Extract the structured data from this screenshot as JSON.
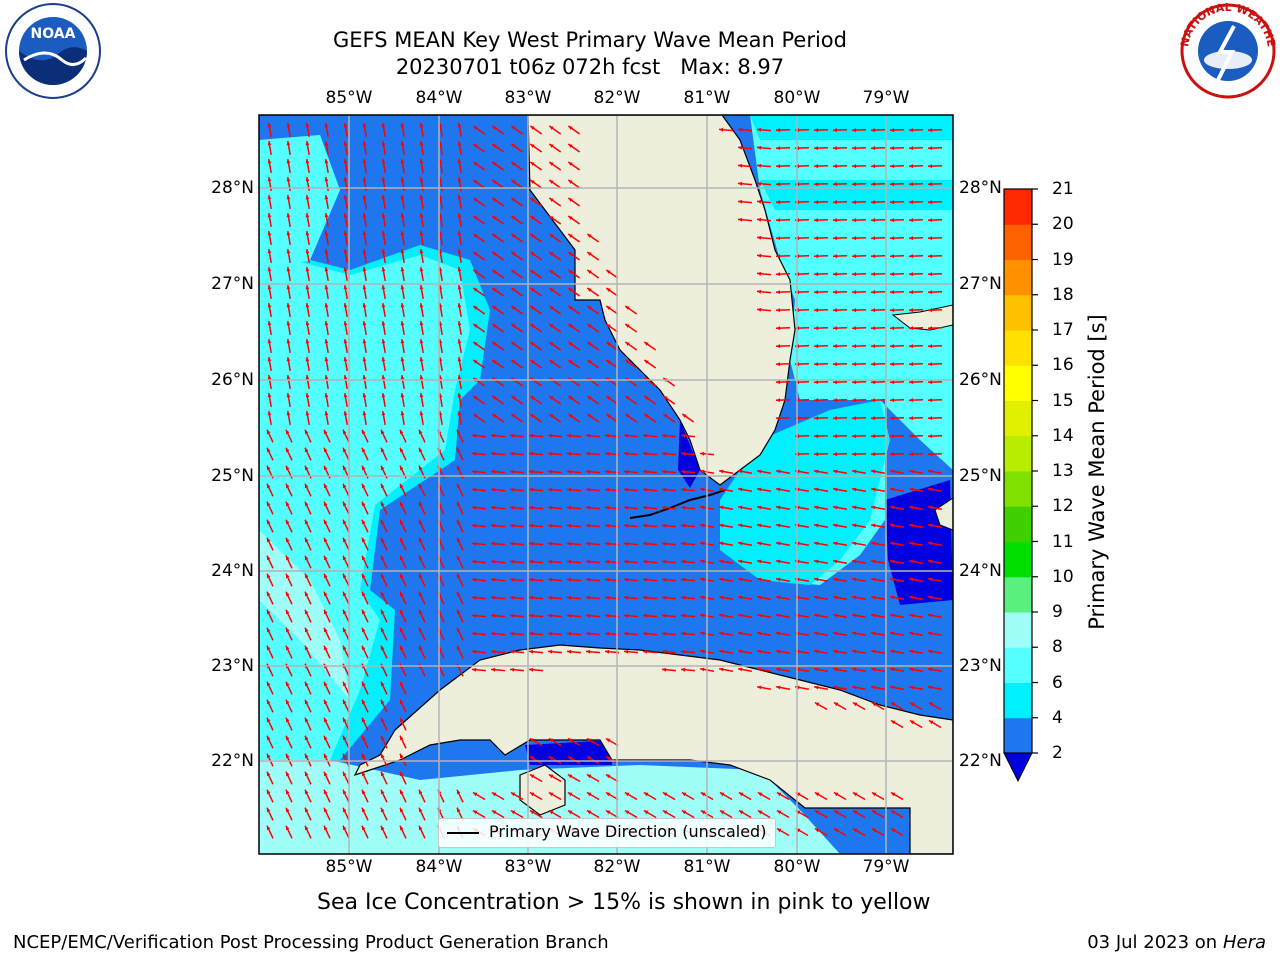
{
  "title": {
    "line1": "GEFS MEAN Key West Primary Wave Mean Period",
    "line2": "20230701 t06z 072h fcst   Max: 8.97"
  },
  "logos": {
    "noaa_text": "NOAA",
    "nws_text": "NATIONAL WEATHER SERVICE"
  },
  "map": {
    "lon_ticks": [
      "85°W",
      "84°W",
      "83°W",
      "82°W",
      "81°W",
      "80°W",
      "79°W"
    ],
    "lat_ticks": [
      "28°N",
      "27°N",
      "26°N",
      "25°N",
      "24°N",
      "23°N",
      "22°N"
    ],
    "legend_label": "Primary Wave Direction (unscaled)",
    "extent": {
      "lon_min": -86.0,
      "lon_max": -78.25,
      "lat_min": 21.0,
      "lat_max": 28.75
    },
    "colors": {
      "land": "#eeeedc",
      "band_2_4": "#1f77f0",
      "band_4_6": "#00f0ff",
      "band_6_8": "#55ffff",
      "band_8_9": "#9ffff8",
      "below_2": "#0000e0",
      "arrow": "#ff0000",
      "grid": "#b4b4b4"
    }
  },
  "colorbar": {
    "title": "Primary Wave Mean Period [s]",
    "levels": [
      "2",
      "4",
      "6",
      "8",
      "9",
      "10",
      "11",
      "12",
      "13",
      "14",
      "15",
      "16",
      "17",
      "18",
      "19",
      "20",
      "21"
    ],
    "colors": [
      "#1f77f0",
      "#00f0ff",
      "#55ffff",
      "#9ffff8",
      "#5af080",
      "#00e000",
      "#40d000",
      "#80e000",
      "#b8ec00",
      "#e0f000",
      "#ffff00",
      "#ffe000",
      "#ffc000",
      "#ff9000",
      "#ff6000",
      "#ff2800"
    ],
    "extend_min_color": "#0000e0"
  },
  "subnote": "Sea Ice Concentration > 15% is shown in pink to yellow",
  "footer": {
    "left": "NCEP/EMC/Verification Post Processing Product Generation Branch",
    "right_date": "03 Jul 2023 on ",
    "right_host": "Hera"
  }
}
